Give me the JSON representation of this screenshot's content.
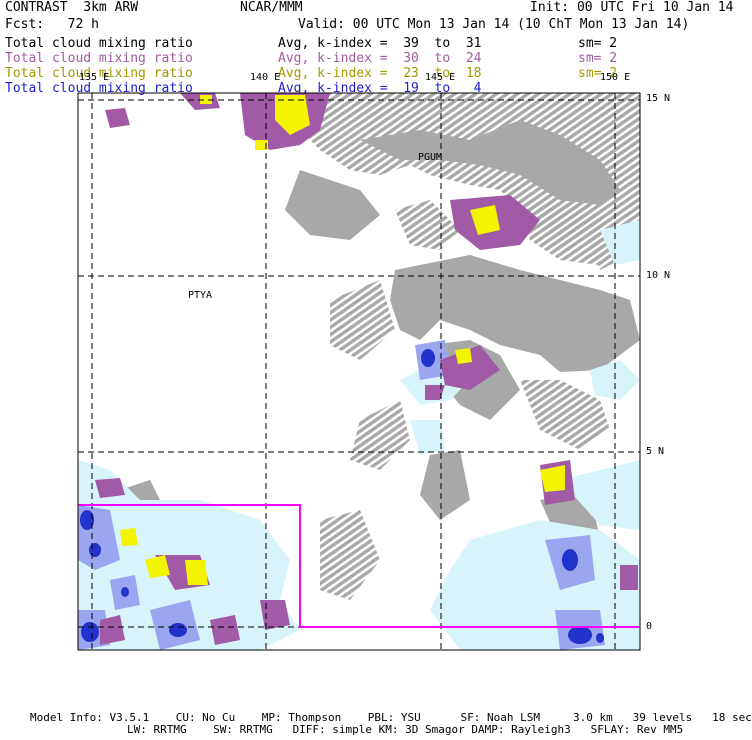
{
  "header": {
    "title": "CONTRAST  3km ARW",
    "center": "NCAR/MMM",
    "init": "Init: 00 UTC Fri 10 Jan 14",
    "fcst": "Fcst:   72 h",
    "valid": "Valid: 00 UTC Mon 13 Jan 14 (10 ChT Mon 13 Jan 14)"
  },
  "legend": [
    {
      "field": "Total cloud mixing ratio",
      "avg": "Avg, k-index =  39  to  31",
      "sm": "sm= 2",
      "color": "#000000"
    },
    {
      "field": "Total cloud mixing ratio",
      "avg": "Avg, k-index =  30  to  24",
      "sm": "sm= 2",
      "color": "#a15ca0"
    },
    {
      "field": "Total cloud mixing ratio",
      "avg": "Avg, k-index =  23  to  18",
      "sm": "sm= 2",
      "color": "#a09a00"
    },
    {
      "field": "Total cloud mixing ratio",
      "avg": "Avg, k-index =  19  to   4",
      "sm": "",
      "color": "#2020d0"
    }
  ],
  "map": {
    "lon_labels": [
      "135 E",
      "140 E",
      "145 E",
      "150 E"
    ],
    "lat_labels": [
      "15 N",
      "10 N",
      "5 N",
      "0"
    ],
    "stations": [
      "PGUM",
      "PTYA"
    ],
    "colors": {
      "gray": "#a8a8a8",
      "purple": "#a05aa6",
      "yellow": "#f4f400",
      "lightblue": "#d6f4fa",
      "midblue": "#9aa6f0",
      "darkblue": "#2233cc",
      "magenta": "#ff00ff"
    }
  },
  "footer": {
    "line1": "Model Info: V3.5.1    CU: No Cu    MP: Thompson    PBL: YSU      SF: Noah LSM     3.0 km   39 levels   18 sec",
    "line2": "LW: RRTMG    SW: RRTMG   DIFF: simple KM: 3D Smagor DAMP: Rayleigh3   SFLAY: Rev MM5"
  }
}
